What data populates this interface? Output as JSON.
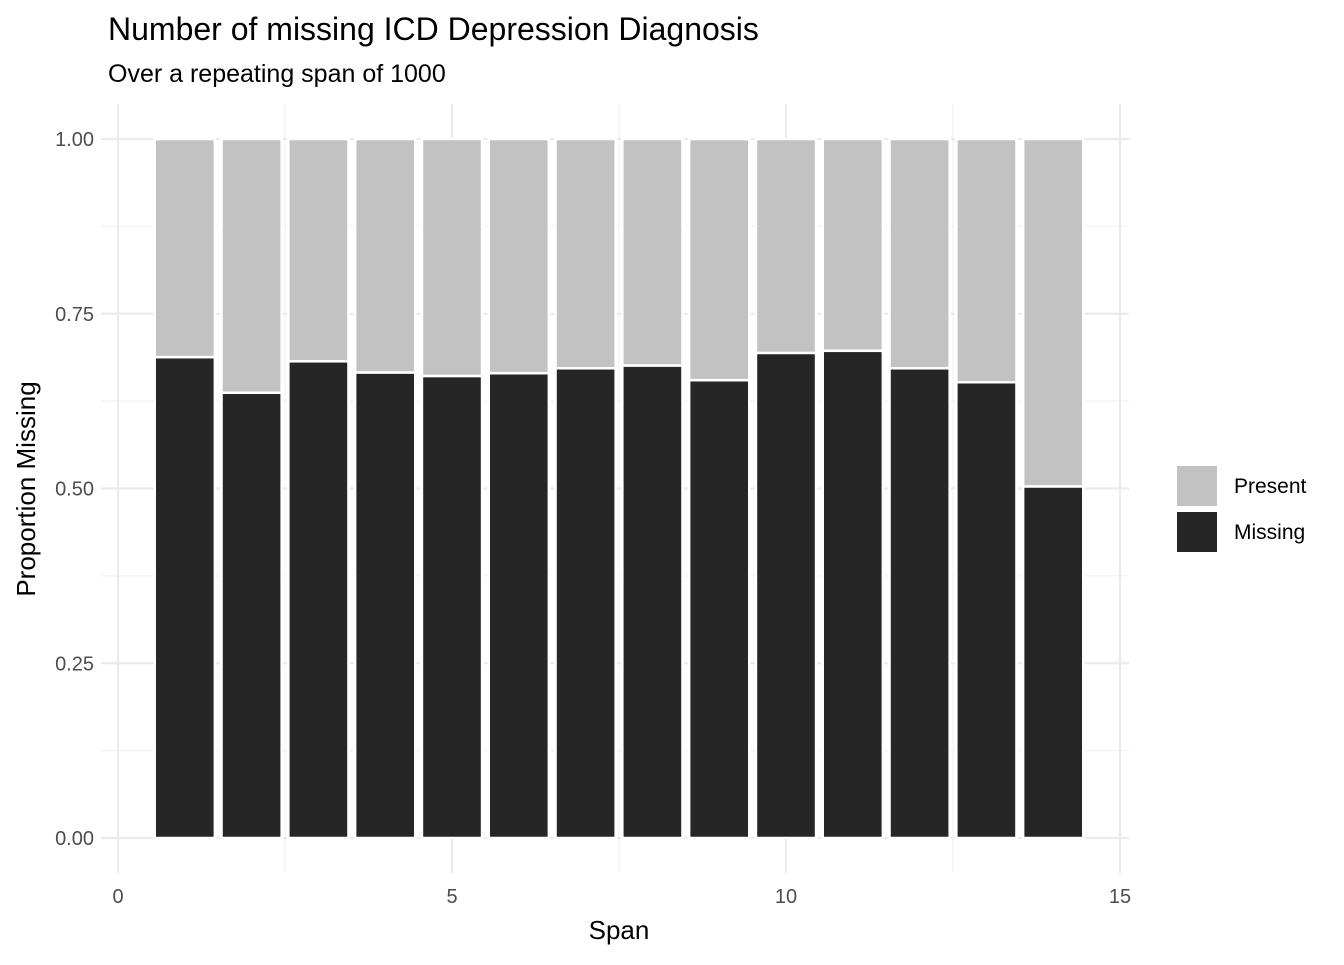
{
  "chart_data": {
    "type": "bar",
    "stacked": true,
    "title": "Number of missing ICD Depression Diagnosis",
    "subtitle": "Over a repeating span of 1000",
    "xlabel": "Span",
    "ylabel": "Proportion Missing",
    "x": [
      1,
      2,
      3,
      4,
      5,
      6,
      7,
      8,
      9,
      10,
      11,
      12,
      13,
      14
    ],
    "series": [
      {
        "name": "Missing",
        "color": "#262626",
        "values": [
          0.688,
          0.637,
          0.682,
          0.666,
          0.661,
          0.665,
          0.672,
          0.676,
          0.655,
          0.694,
          0.697,
          0.672,
          0.652,
          0.503
        ]
      },
      {
        "name": "Present",
        "color": "#c2c2c2",
        "values": [
          0.312,
          0.363,
          0.318,
          0.334,
          0.339,
          0.335,
          0.328,
          0.324,
          0.345,
          0.306,
          0.303,
          0.328,
          0.348,
          0.497
        ]
      }
    ],
    "xlim": [
      0,
      15
    ],
    "ylim": [
      0,
      1
    ],
    "xticks": [
      0,
      5,
      10,
      15
    ],
    "xtick_labels": [
      "0",
      "5",
      "10",
      "15"
    ],
    "yticks": [
      0,
      0.25,
      0.5,
      0.75,
      1
    ],
    "ytick_labels": [
      "0.00",
      "0.25",
      "0.50",
      "0.75",
      "1.00"
    ],
    "legend": {
      "position": "right",
      "entries": [
        {
          "label": "Present",
          "color": "#c2c2c2"
        },
        {
          "label": "Missing",
          "color": "#262626"
        }
      ]
    },
    "grid": true
  }
}
